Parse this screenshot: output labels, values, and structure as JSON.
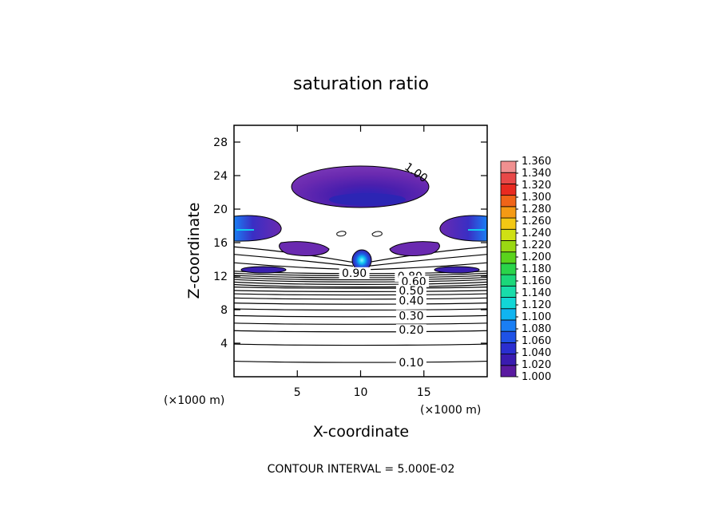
{
  "chart_data": {
    "type": "contour",
    "title": "saturation ratio",
    "xlabel": "X-coordinate",
    "ylabel": "Z-coordinate",
    "x_unit": "(×1000 m)",
    "z_unit": "(×1000 m)",
    "xlim": [
      0,
      20
    ],
    "ylim": [
      0,
      30
    ],
    "x_ticks": [
      5,
      10,
      15
    ],
    "y_ticks": [
      4,
      8,
      12,
      16,
      20,
      24,
      28
    ],
    "footer": "CONTOUR INTERVAL =  5.000E-02",
    "contour_labels": [
      {
        "x": 14.4,
        "z": 24.4,
        "text": "1.00"
      },
      {
        "x": 9.5,
        "z": 12.4,
        "text": "0.90"
      },
      {
        "x": 13.9,
        "z": 12.0,
        "text": "0.80"
      },
      {
        "x": 14.2,
        "z": 11.4,
        "text": "0.60"
      },
      {
        "x": 14.0,
        "z": 10.3,
        "text": "0.50"
      },
      {
        "x": 14.0,
        "z": 9.1,
        "text": "0.40"
      },
      {
        "x": 14.0,
        "z": 7.3,
        "text": "0.30"
      },
      {
        "x": 14.0,
        "z": 5.6,
        "text": "0.20"
      },
      {
        "x": 14.0,
        "z": 1.7,
        "text": "0.10"
      }
    ],
    "colorbar": {
      "levels": [
        "1.000",
        "1.020",
        "1.040",
        "1.060",
        "1.080",
        "1.100",
        "1.120",
        "1.140",
        "1.160",
        "1.180",
        "1.200",
        "1.220",
        "1.240",
        "1.260",
        "1.280",
        "1.300",
        "1.320",
        "1.340",
        "1.360"
      ],
      "colors": [
        "#5a1aa0",
        "#3a1bb0",
        "#2a2ed0",
        "#1e52e6",
        "#1a7ef4",
        "#10b4f0",
        "#12d6d6",
        "#18dcaa",
        "#1bd77a",
        "#2ad44a",
        "#5ad31c",
        "#9ad812",
        "#cfe014",
        "#f3c814",
        "#f59a14",
        "#f06418",
        "#e82a20",
        "#e84848",
        "#f09090"
      ]
    }
  }
}
